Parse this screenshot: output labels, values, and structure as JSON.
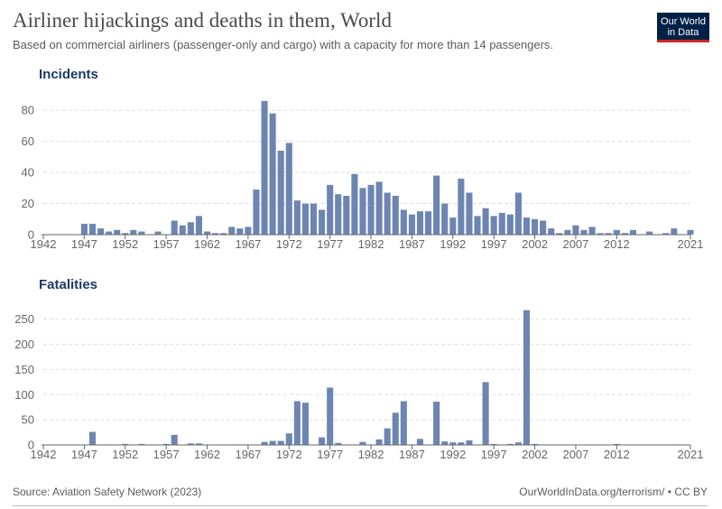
{
  "header": {
    "title": "Airliner hijackings and deaths in them, World",
    "subtitle": "Based on commercial airliners (passenger-only and cargo) with a capacity for more than 14 passengers."
  },
  "logo": {
    "line1": "Our World",
    "line2": "in Data"
  },
  "footer": {
    "source": "Source: Aviation Safety Network (2023)",
    "credit": "OurWorldInData.org/terrorism/ • CC BY"
  },
  "colors": {
    "bar": "#6d85b2",
    "grid": "#dddddd",
    "axis": "#666666",
    "panel_title": "#1d3a67",
    "logo_bg": "#002147",
    "logo_accent": "#ce261e"
  },
  "chart_data": [
    {
      "type": "bar",
      "title": "Incidents",
      "x_ticks": [
        "1942",
        "1947",
        "1952",
        "1957",
        "1962",
        "1967",
        "1972",
        "1977",
        "1982",
        "1987",
        "1992",
        "1997",
        "2002",
        "2007",
        "2012",
        "2021"
      ],
      "y_ticks": [
        0,
        20,
        40,
        60,
        80
      ],
      "ylim": [
        0,
        90
      ],
      "xlim": [
        1942,
        2021
      ],
      "grid": "horizontal-dashed",
      "x": [
        1947,
        1948,
        1949,
        1950,
        1951,
        1952,
        1953,
        1954,
        1956,
        1958,
        1959,
        1960,
        1961,
        1962,
        1963,
        1964,
        1965,
        1966,
        1967,
        1968,
        1969,
        1970,
        1971,
        1972,
        1973,
        1974,
        1975,
        1976,
        1977,
        1978,
        1979,
        1980,
        1981,
        1982,
        1983,
        1984,
        1985,
        1986,
        1987,
        1988,
        1989,
        1990,
        1991,
        1992,
        1993,
        1994,
        1995,
        1996,
        1997,
        1998,
        1999,
        2000,
        2001,
        2002,
        2003,
        2004,
        2005,
        2006,
        2007,
        2008,
        2009,
        2010,
        2011,
        2012,
        2013,
        2014,
        2016,
        2018,
        2019,
        2021
      ],
      "values": [
        7,
        7,
        4,
        2,
        3,
        1,
        3,
        2,
        2,
        9,
        6,
        8,
        12,
        2,
        1,
        1,
        5,
        4,
        5,
        29,
        86,
        78,
        54,
        59,
        22,
        20,
        20,
        16,
        32,
        26,
        25,
        39,
        30,
        32,
        34,
        27,
        25,
        16,
        13,
        15,
        15,
        38,
        20,
        11,
        36,
        27,
        12,
        17,
        12,
        14,
        13,
        27,
        11,
        10,
        9,
        4,
        1,
        3,
        6,
        3,
        5,
        1,
        1,
        3,
        1,
        3,
        2,
        1,
        4,
        3
      ]
    },
    {
      "type": "bar",
      "title": "Fatalities",
      "x_ticks": [
        "1942",
        "1947",
        "1952",
        "1957",
        "1962",
        "1967",
        "1972",
        "1977",
        "1982",
        "1987",
        "1992",
        "1997",
        "2002",
        "2007",
        "2012",
        "2021"
      ],
      "y_ticks": [
        0,
        50,
        100,
        150,
        200,
        250
      ],
      "ylim": [
        0,
        280
      ],
      "xlim": [
        1942,
        2021
      ],
      "grid": "horizontal-dashed",
      "x": [
        1948,
        1950,
        1952,
        1954,
        1957,
        1958,
        1960,
        1961,
        1966,
        1968,
        1969,
        1970,
        1971,
        1972,
        1973,
        1974,
        1976,
        1977,
        1978,
        1981,
        1983,
        1984,
        1985,
        1986,
        1987,
        1988,
        1990,
        1991,
        1992,
        1993,
        1994,
        1996,
        1997,
        1999,
        2000,
        2001,
        2002,
        2012,
        2019
      ],
      "values": [
        26,
        1,
        2,
        2,
        2,
        20,
        3,
        3,
        1,
        1,
        6,
        8,
        8,
        23,
        87,
        84,
        15,
        114,
        4,
        6,
        11,
        33,
        64,
        87,
        1,
        12,
        86,
        7,
        5,
        5,
        9,
        125,
        2,
        2,
        5,
        268,
        2,
        2,
        1
      ]
    }
  ]
}
